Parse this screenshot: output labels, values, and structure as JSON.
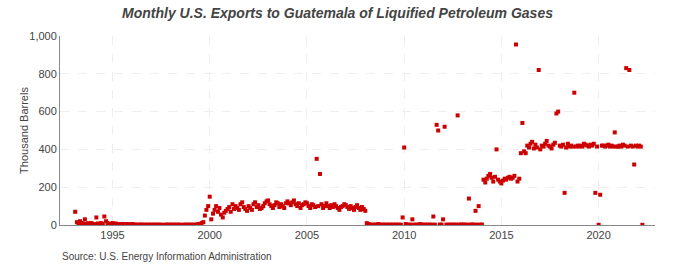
{
  "chart_data": {
    "type": "scatter",
    "title": "Monthly U.S. Exports to Guatemala of Liquified Petroleum Gases",
    "y_label": "Thousand Barrels",
    "annotations": [
      "Source: U.S. Energy Information Administration"
    ],
    "color": "#cc0000",
    "marker": "square",
    "grid": true,
    "xlim": [
      1992.3,
      2022.9
    ],
    "xticks": [
      1995,
      2000,
      2005,
      2010,
      2015,
      2020
    ],
    "ylim": [
      0,
      1000
    ],
    "yticks": [
      0,
      200,
      400,
      600,
      800,
      {
        "value": 1000,
        "label": "1,000"
      }
    ],
    "x": [
      1993.08,
      1993.17,
      1993.25,
      1993.33,
      1993.42,
      1993.5,
      1993.58,
      1993.67,
      1993.75,
      1993.83,
      1993.92,
      1994.0,
      1994.08,
      1994.17,
      1994.25,
      1994.33,
      1994.42,
      1994.5,
      1994.58,
      1994.67,
      1994.75,
      1994.83,
      1994.92,
      1995.0,
      1995.08,
      1995.17,
      1995.25,
      1995.33,
      1995.42,
      1995.5,
      1995.58,
      1995.67,
      1995.75,
      1995.83,
      1995.92,
      1996.0,
      1996.08,
      1996.17,
      1996.25,
      1996.33,
      1996.42,
      1996.5,
      1996.67,
      1996.75,
      1996.83,
      1996.92,
      1997.0,
      1997.08,
      1997.17,
      1997.25,
      1997.33,
      1997.42,
      1997.5,
      1997.67,
      1997.75,
      1997.83,
      1997.92,
      1998.0,
      1998.08,
      1998.17,
      1998.25,
      1998.33,
      1998.42,
      1998.5,
      1998.67,
      1998.75,
      1998.83,
      1998.92,
      1999.0,
      1999.08,
      1999.17,
      1999.25,
      1999.33,
      1999.42,
      1999.5,
      1999.58,
      1999.67,
      1999.75,
      1999.83,
      1999.92,
      2000.0,
      2000.08,
      2000.17,
      2000.25,
      2000.33,
      2000.42,
      2000.5,
      2000.58,
      2000.67,
      2000.75,
      2000.83,
      2000.92,
      2001.0,
      2001.08,
      2001.17,
      2001.25,
      2001.33,
      2001.42,
      2001.5,
      2001.58,
      2001.67,
      2001.75,
      2001.83,
      2001.92,
      2002.0,
      2002.08,
      2002.17,
      2002.25,
      2002.33,
      2002.42,
      2002.5,
      2002.58,
      2002.67,
      2002.75,
      2002.83,
      2002.92,
      2003.0,
      2003.08,
      2003.17,
      2003.25,
      2003.33,
      2003.42,
      2003.5,
      2003.58,
      2003.67,
      2003.75,
      2003.83,
      2003.92,
      2004.0,
      2004.08,
      2004.17,
      2004.25,
      2004.33,
      2004.42,
      2004.5,
      2004.58,
      2004.67,
      2004.75,
      2004.83,
      2004.92,
      2005.0,
      2005.08,
      2005.17,
      2005.25,
      2005.33,
      2005.42,
      2005.5,
      2005.58,
      2005.67,
      2005.75,
      2005.83,
      2005.92,
      2006.0,
      2006.08,
      2006.17,
      2006.25,
      2006.33,
      2006.42,
      2006.5,
      2006.58,
      2006.67,
      2006.75,
      2006.83,
      2006.92,
      2007.0,
      2007.08,
      2007.17,
      2007.25,
      2007.33,
      2007.42,
      2007.5,
      2007.58,
      2007.67,
      2007.75,
      2007.83,
      2007.92,
      2008.0,
      2008.08,
      2008.17,
      2008.25,
      2008.33,
      2008.42,
      2008.5,
      2008.58,
      2008.67,
      2008.75,
      2008.83,
      2008.92,
      2009.0,
      2009.08,
      2009.17,
      2009.25,
      2009.33,
      2009.42,
      2009.5,
      2009.58,
      2009.67,
      2009.75,
      2009.83,
      2009.92,
      2010.0,
      2010.08,
      2010.17,
      2010.25,
      2010.33,
      2010.42,
      2010.5,
      2010.58,
      2010.67,
      2010.75,
      2010.83,
      2010.92,
      2011.0,
      2011.08,
      2011.17,
      2011.25,
      2011.33,
      2011.42,
      2011.5,
      2011.58,
      2011.67,
      2011.75,
      2011.83,
      2011.92,
      2012.0,
      2012.08,
      2012.17,
      2012.25,
      2012.33,
      2012.42,
      2012.5,
      2012.58,
      2012.67,
      2012.75,
      2012.83,
      2012.92,
      2013.0,
      2013.08,
      2013.17,
      2013.25,
      2013.33,
      2013.42,
      2013.5,
      2013.58,
      2013.67,
      2013.75,
      2013.83,
      2013.92,
      2014.0,
      2014.08,
      2014.17,
      2014.25,
      2014.33,
      2014.42,
      2014.5,
      2014.58,
      2014.67,
      2014.75,
      2014.83,
      2014.92,
      2015.0,
      2015.08,
      2015.17,
      2015.25,
      2015.33,
      2015.42,
      2015.5,
      2015.58,
      2015.67,
      2015.75,
      2015.83,
      2015.92,
      2016.0,
      2016.08,
      2016.17,
      2016.25,
      2016.33,
      2016.42,
      2016.5,
      2016.58,
      2016.67,
      2016.75,
      2016.83,
      2016.92,
      2017.0,
      2017.08,
      2017.17,
      2017.25,
      2017.33,
      2017.42,
      2017.5,
      2017.58,
      2017.67,
      2017.75,
      2017.83,
      2017.92,
      2018.0,
      2018.08,
      2018.17,
      2018.25,
      2018.33,
      2018.42,
      2018.5,
      2018.58,
      2018.67,
      2018.75,
      2018.83,
      2018.92,
      2019.0,
      2019.08,
      2019.17,
      2019.25,
      2019.33,
      2019.42,
      2019.5,
      2019.58,
      2019.67,
      2019.75,
      2019.83,
      2019.92,
      2020.0,
      2020.08,
      2020.17,
      2020.25,
      2020.33,
      2020.42,
      2020.5,
      2020.58,
      2020.67,
      2020.75,
      2020.83,
      2020.92,
      2021.0,
      2021.08,
      2021.17,
      2021.25,
      2021.33,
      2021.42,
      2021.5,
      2021.58,
      2021.67,
      2021.75,
      2021.83,
      2021.92,
      2022.0,
      2022.08,
      2022.17,
      2022.25
    ],
    "values": [
      70,
      15,
      5,
      20,
      10,
      8,
      30,
      5,
      10,
      5,
      10,
      3,
      5,
      40,
      8,
      5,
      10,
      5,
      45,
      20,
      10,
      5,
      5,
      10,
      5,
      8,
      3,
      5,
      2,
      5,
      3,
      2,
      5,
      3,
      2,
      5,
      3,
      2,
      1,
      2,
      1,
      3,
      2,
      1,
      2,
      1,
      2,
      1,
      2,
      1,
      2,
      1,
      2,
      1,
      2,
      1,
      2,
      1,
      2,
      1,
      2,
      1,
      2,
      1,
      2,
      1,
      2,
      1,
      2,
      1,
      2,
      1,
      2,
      5,
      3,
      10,
      15,
      50,
      80,
      100,
      150,
      30,
      60,
      80,
      100,
      70,
      90,
      55,
      40,
      65,
      75,
      85,
      95,
      70,
      110,
      85,
      100,
      90,
      80,
      110,
      120,
      95,
      85,
      75,
      100,
      90,
      80,
      110,
      120,
      95,
      105,
      85,
      90,
      100,
      115,
      125,
      130,
      110,
      100,
      90,
      105,
      120,
      115,
      95,
      110,
      100,
      90,
      115,
      125,
      115,
      105,
      120,
      130,
      110,
      100,
      115,
      90,
      105,
      110,
      120,
      115,
      100,
      90,
      110,
      105,
      95,
      350,
      100,
      270,
      110,
      90,
      100,
      115,
      100,
      90,
      105,
      95,
      110,
      100,
      90,
      80,
      95,
      100,
      110,
      105,
      95,
      85,
      100,
      90,
      80,
      95,
      105,
      90,
      80,
      95,
      85,
      75,
      10,
      5,
      2,
      1,
      2,
      1,
      2,
      5,
      2,
      1,
      2,
      1,
      2,
      1,
      2,
      1,
      2,
      1,
      2,
      1,
      2,
      1,
      40,
      410,
      5,
      2,
      1,
      2,
      30,
      1,
      2,
      1,
      2,
      5,
      2,
      1,
      2,
      1,
      2,
      1,
      2,
      45,
      2,
      530,
      500,
      2,
      2,
      30,
      520,
      2,
      1,
      2,
      1,
      2,
      1,
      2,
      580,
      2,
      2,
      2,
      2,
      1,
      2,
      140,
      2,
      2,
      2,
      75,
      2,
      100,
      2,
      2,
      240,
      225,
      245,
      260,
      270,
      250,
      230,
      255,
      400,
      240,
      230,
      220,
      235,
      245,
      240,
      250,
      255,
      245,
      250,
      260,
      955,
      230,
      245,
      380,
      540,
      390,
      380,
      420,
      410,
      430,
      440,
      405,
      425,
      410,
      820,
      400,
      420,
      415,
      430,
      445,
      420,
      415,
      405,
      425,
      435,
      590,
      600,
      420,
      415,
      425,
      170,
      410,
      430,
      415,
      420,
      415,
      700,
      415,
      420,
      415,
      420,
      415,
      430,
      425,
      420,
      415,
      425,
      420,
      430,
      170,
      415,
      1,
      160,
      420,
      420,
      415,
      420,
      425,
      415,
      420,
      415,
      490,
      415,
      415,
      420,
      415,
      425,
      420,
      830,
      415,
      820,
      420,
      415,
      320,
      420,
      415,
      420,
      415,
      1
    ]
  }
}
